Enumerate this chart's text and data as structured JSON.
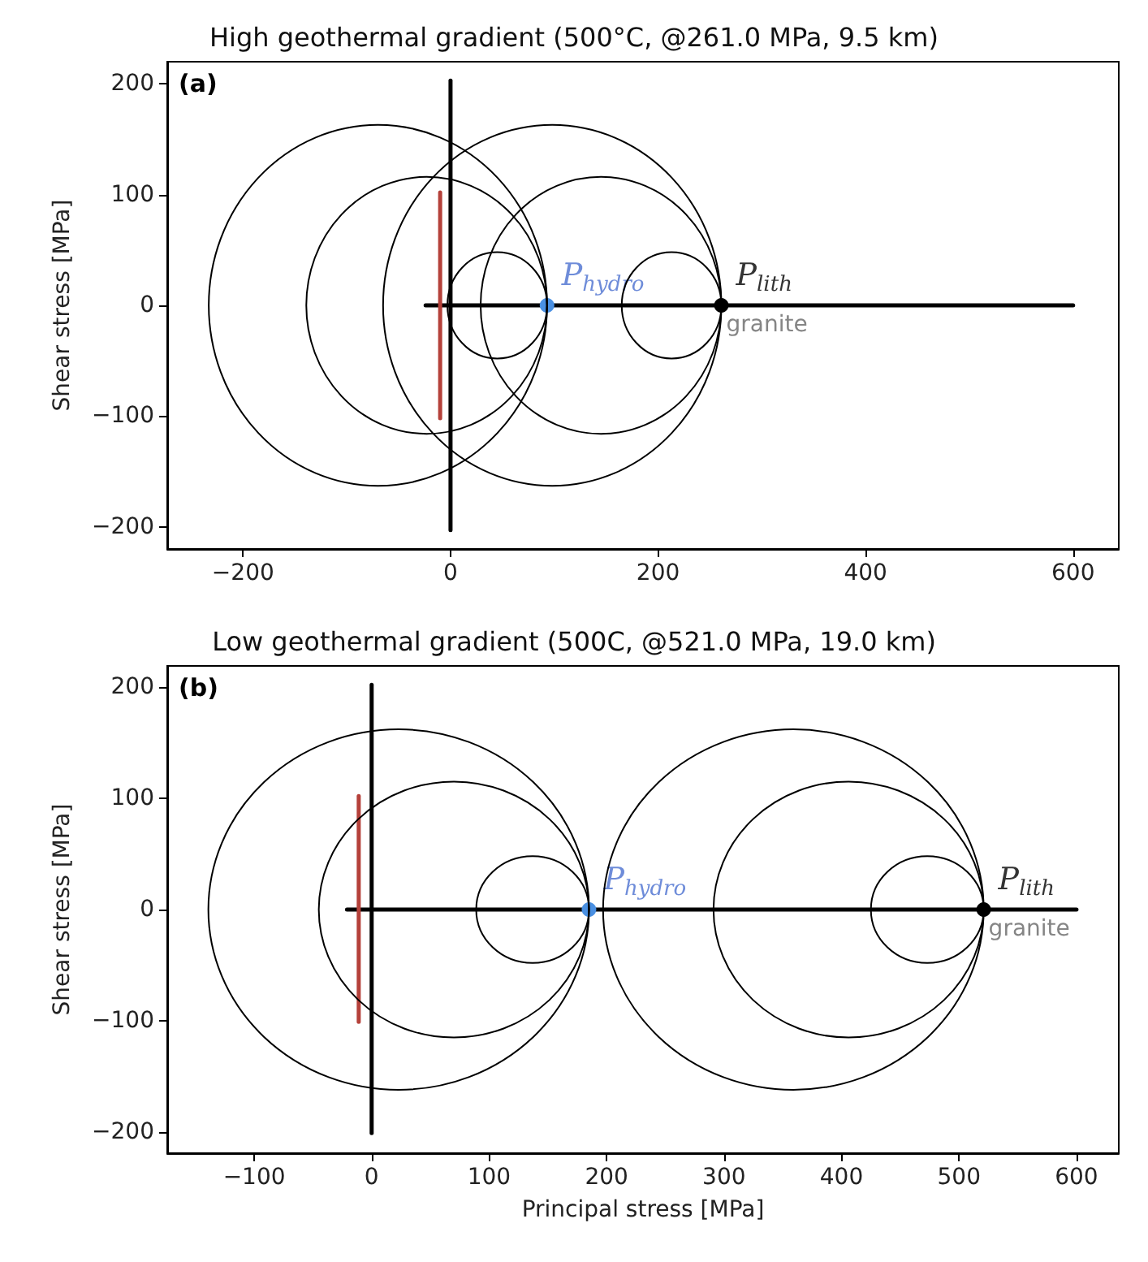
{
  "chart_data": [
    {
      "type": "line",
      "title": "High geothermal gradient (500°C, @261.0 MPa, 9.5 km)",
      "ylabel": "Shear stress [MPa]",
      "xlim": [
        -273,
        644
      ],
      "xticks": [
        -200,
        0,
        200,
        400,
        600
      ],
      "ylim": [
        -220,
        220
      ],
      "yticks": [
        -200,
        -100,
        0,
        100,
        200
      ],
      "grid": false,
      "line_style": "solid",
      "annotations": [
        "(a)",
        {
          "text": "P$_{hydro}$",
          "x": 93,
          "y": 0
        },
        {
          "text": "P$_{lith}$",
          "x": 261,
          "y": 0
        },
        {
          "text": "granite",
          "x": 261,
          "y": 0
        }
      ],
      "series": [
        {
          "color": "#000000",
          "x": [
            -24,
            600
          ],
          "values": [
            0,
            0
          ]
        },
        {
          "color": "#000000",
          "x": [
            0,
            0
          ],
          "values": [
            -203,
            203
          ]
        },
        {
          "color": "#b5413a",
          "x": [
            -10,
            -10
          ],
          "values": [
            -102,
            102
          ]
        },
        {
          "type": "scatter",
          "marker": "circle",
          "color": "#4a90e2",
          "x": [
            93
          ],
          "values": [
            0
          ]
        },
        {
          "type": "scatter",
          "marker": "circle",
          "color": "#000000",
          "x": [
            261
          ],
          "values": [
            0
          ]
        }
      ]
    },
    {
      "type": "line",
      "title": "Low geothermal gradient (500C, @521.0 MPa, 19.0 km)",
      "xlabel": "Principal stress [MPa]",
      "ylabel": "Shear stress [MPa]",
      "xlim": [
        -174,
        636
      ],
      "xticks": [
        -100,
        0,
        100,
        200,
        300,
        400,
        500,
        600
      ],
      "ylim": [
        -219,
        219
      ],
      "yticks": [
        -200,
        -100,
        0,
        100,
        200
      ],
      "grid": false,
      "line_style": "solid",
      "annotations": [
        "(b)",
        {
          "text": "P$_{hydro}$",
          "x": 185,
          "y": 0
        },
        {
          "text": "P$_{lith}$",
          "x": 521,
          "y": 0
        },
        {
          "text": "granite",
          "x": 521,
          "y": 0
        }
      ],
      "series": [
        {
          "color": "#000000",
          "x": [
            -21,
            600
          ],
          "values": [
            0,
            0
          ]
        },
        {
          "color": "#000000",
          "x": [
            0,
            0
          ],
          "values": [
            -201,
            202
          ]
        },
        {
          "color": "#b5413a",
          "x": [
            -11,
            -11
          ],
          "values": [
            -101,
            102
          ]
        },
        {
          "type": "scatter",
          "marker": "circle",
          "color": "#4a90e2",
          "x": [
            185
          ],
          "values": [
            0
          ]
        },
        {
          "type": "scatter",
          "marker": "circle",
          "color": "#000000",
          "x": [
            521
          ],
          "values": [
            0
          ]
        }
      ]
    }
  ]
}
